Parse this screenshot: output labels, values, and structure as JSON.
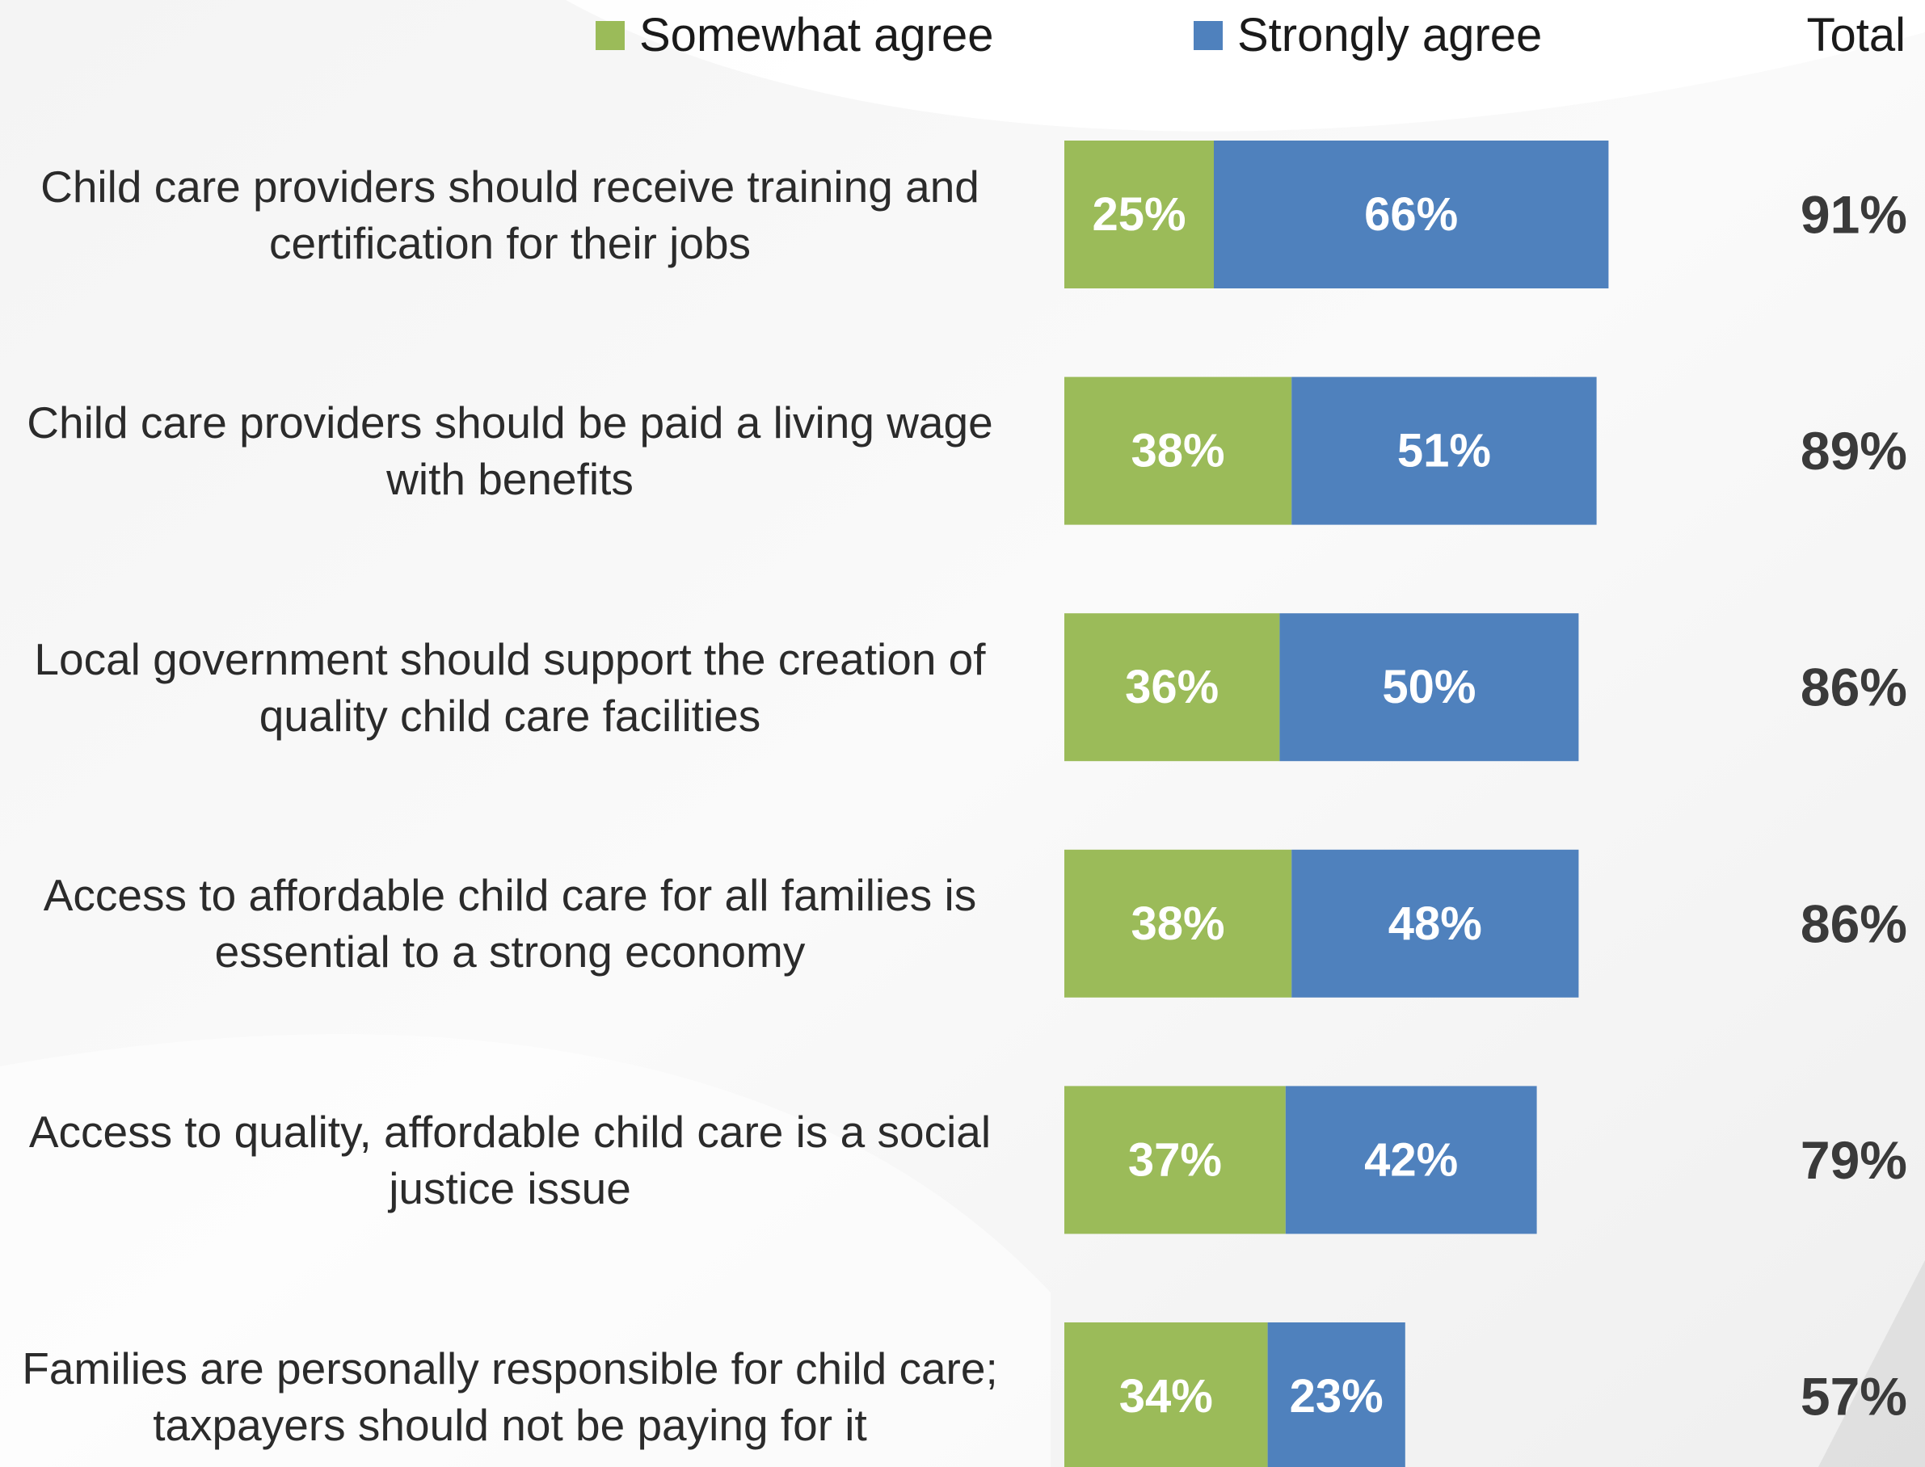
{
  "colors": {
    "somewhat": "#9BBB59",
    "strongly": "#4F81BD",
    "label_text": "#2b2b2b",
    "total_text": "#3a3a3a"
  },
  "legend": {
    "somewhat_label": "Somewhat agree",
    "strongly_label": "Strongly agree",
    "total_header": "Total"
  },
  "chart_data": {
    "type": "bar",
    "orientation": "horizontal",
    "stacked": true,
    "categories": [
      "Child care providers should receive training and certification for their jobs",
      "Child care providers should be paid a living wage with benefits",
      "Local government should support the creation of quality child care facilities",
      "Access to affordable child care for all families is essential to a strong economy",
      "Access to quality, affordable child care is a social justice issue",
      "Families are personally responsible for child care; taxpayers should not be paying for it"
    ],
    "category_lines": [
      [
        "Child care providers should receive training and",
        "certification for their jobs"
      ],
      [
        "Child care providers should be paid a living wage",
        "with benefits"
      ],
      [
        "Local government should support the creation of",
        "quality child care facilities"
      ],
      [
        "Access to affordable child care for all families is",
        "essential to a strong economy"
      ],
      [
        "Access to quality, affordable child care is a social",
        "justice issue"
      ],
      [
        "Families are personally responsible for child care;",
        "taxpayers should not be paying for it"
      ]
    ],
    "series": [
      {
        "name": "Somewhat agree",
        "values": [
          25,
          38,
          36,
          38,
          37,
          34
        ]
      },
      {
        "name": "Strongly agree",
        "values": [
          66,
          51,
          50,
          48,
          42,
          23
        ]
      }
    ],
    "totals": [
      91,
      89,
      86,
      86,
      79,
      57
    ],
    "value_format": "percent",
    "legend_position": "top",
    "grid": false
  }
}
